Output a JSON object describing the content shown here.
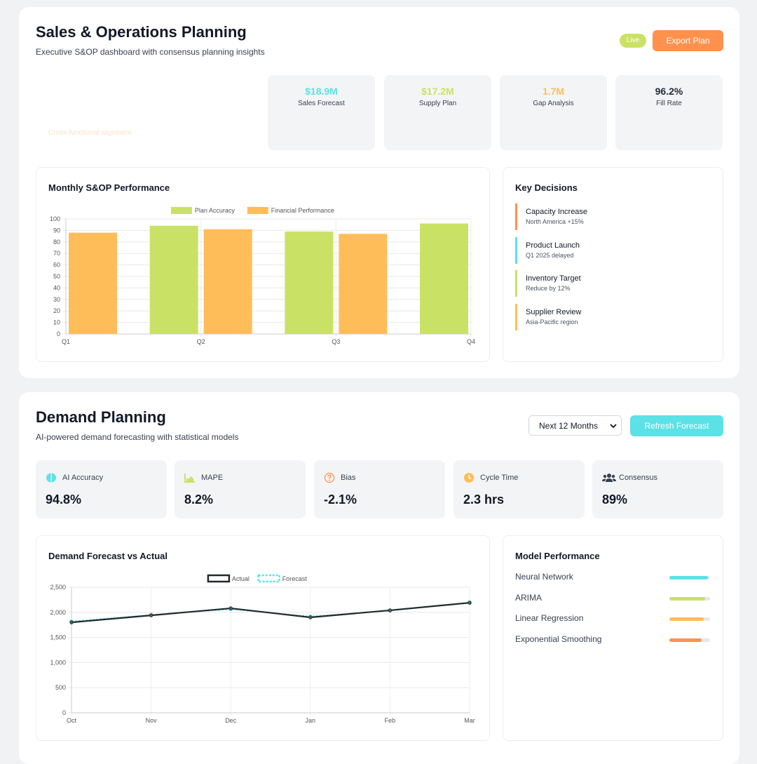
{
  "sop": {
    "title": "Sales & Operations Planning",
    "subtitle": "Executive S&OP dashboard with consensus planning insights",
    "badge": "Live",
    "button": "Export Plan",
    "note": "Cross-functional alignment",
    "kpis": [
      {
        "value": "$18.9M",
        "label": "Sales Forecast",
        "color": "#5ce1e6"
      },
      {
        "value": "$17.2M",
        "label": "Supply Plan",
        "color": "#c9e265"
      },
      {
        "value": "1.7M",
        "label": "Gap Analysis",
        "color": "#ffbd59"
      },
      {
        "value": "96.2%",
        "label": "Fill Rate",
        "color": "#1f2937"
      }
    ],
    "chart": {
      "type": "bar",
      "title": "Monthly S&OP Performance",
      "categories": [
        "Q1",
        "Q2",
        "Q3",
        "Q4"
      ],
      "series": [
        {
          "name": "Plan Accuracy",
          "color": "#c9e265",
          "values": [
            null,
            94,
            89,
            96
          ]
        },
        {
          "name": "Financial Performance",
          "color": "#ffbd59",
          "values": [
            88,
            91,
            87,
            null
          ]
        }
      ],
      "ylim": [
        0,
        100
      ],
      "yticks": [
        0,
        10,
        20,
        30,
        40,
        50,
        60,
        70,
        80,
        90,
        100
      ],
      "grid": true
    },
    "decisions": {
      "title": "Key Decisions",
      "items": [
        {
          "title": "Capacity Increase",
          "detail": "North America +15%",
          "color": "#ff914d"
        },
        {
          "title": "Product Launch",
          "detail": "Q1 2025 delayed",
          "color": "#5ce1e6"
        },
        {
          "title": "Inventory Target",
          "detail": "Reduce by 12%",
          "color": "#c9e265"
        },
        {
          "title": "Supplier Review",
          "detail": "Asia-Pacific region",
          "color": "#ffbd59"
        }
      ]
    }
  },
  "demand": {
    "title": "Demand Planning",
    "subtitle": "AI-powered demand forecasting with statistical models",
    "select": "Next 12 Months",
    "button": "Refresh Forecast",
    "metrics": [
      {
        "label": "AI Accuracy",
        "value": "94.8%"
      },
      {
        "label": "MAPE",
        "value": "8.2%"
      },
      {
        "label": "Bias",
        "value": "-2.1%"
      },
      {
        "label": "Cycle Time",
        "value": "2.3 hrs"
      },
      {
        "label": "Consensus",
        "value": "89%"
      }
    ],
    "chart": {
      "type": "line",
      "title": "Demand Forecast vs Actual",
      "categories": [
        "Oct",
        "Nov",
        "Dec",
        "Jan",
        "Feb",
        "Mar"
      ],
      "series": [
        {
          "name": "Actual",
          "color": "#1f2a2a",
          "values": [
            1800,
            1940,
            2080,
            1900,
            2040,
            2190
          ]
        },
        {
          "name": "Forecast",
          "color": "#5ce1e6",
          "dash": true,
          "values": [
            1820,
            1950,
            2060,
            1920,
            2030,
            2200
          ]
        }
      ],
      "ylim": [
        0,
        2500
      ],
      "yticks": [
        0,
        500,
        {
          "value": 1000,
          "label": "1,000"
        },
        {
          "value": 1500,
          "label": "1,500"
        },
        {
          "value": 2000,
          "label": "2,000"
        },
        {
          "value": 2500,
          "label": "2,500"
        }
      ],
      "grid": true
    },
    "models": {
      "title": "Model Performance",
      "items": [
        {
          "name": "Neural Network",
          "value": 94,
          "color": "#5ce1e6"
        },
        {
          "name": "ARIMA",
          "value": 88,
          "color": "#c9e265"
        },
        {
          "name": "Linear Regression",
          "value": 85,
          "color": "#ffbd59"
        },
        {
          "name": "Exponential Smoothing",
          "value": 80,
          "color": "#ff914d"
        }
      ]
    }
  }
}
